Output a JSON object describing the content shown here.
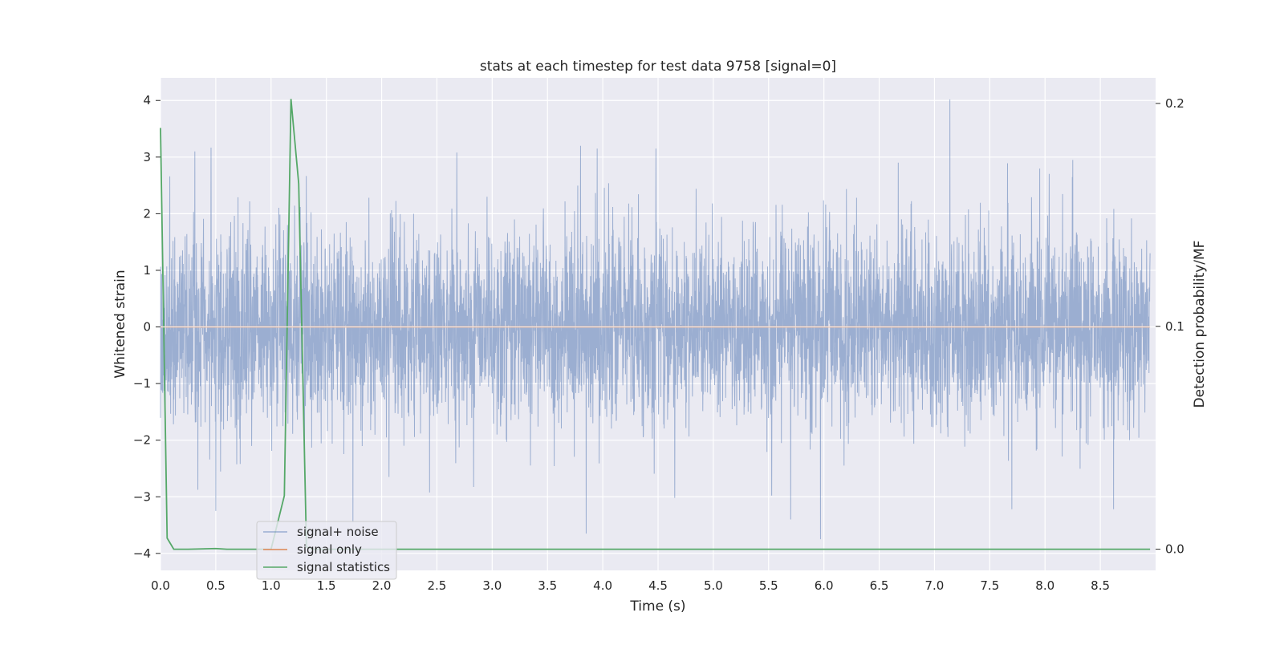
{
  "chart_data": {
    "type": "line",
    "title": "stats at each timestep for test data 9758 [signal=0]",
    "xlabel": "Time (s)",
    "ylabel": "Whitened strain",
    "ylabel_right": "Detection probability/MF",
    "xlim": [
      0.0,
      9.0
    ],
    "ylim": [
      -4.3,
      4.4
    ],
    "ylim_right": [
      -0.0095,
      0.2115
    ],
    "xticks": [
      "0.0",
      "0.5",
      "1.0",
      "1.5",
      "2.0",
      "2.5",
      "3.0",
      "3.5",
      "4.0",
      "4.5",
      "5.0",
      "5.5",
      "6.0",
      "6.5",
      "7.0",
      "7.5",
      "8.0",
      "8.5"
    ],
    "yticks": [
      "4",
      "3",
      "2",
      "1",
      "0",
      "−1",
      "−2",
      "−3",
      "−4"
    ],
    "yticks_right": [
      "0.2",
      "0.1",
      "0.0"
    ],
    "grid": true,
    "legend_position": "lower-left",
    "series": [
      {
        "name": "signal+ noise",
        "axis": "left",
        "color": "#4c72b0",
        "opacity": 0.5,
        "kind": "noise",
        "sample_rate_hz": 2048,
        "std": 0.85,
        "envelope": [
          -3.75,
          4.0
        ],
        "peaks": [
          {
            "x": 7.14,
            "y": 4.02
          },
          {
            "x": 0.31,
            "y": 3.1
          },
          {
            "x": 2.68,
            "y": 3.08
          },
          {
            "x": 3.8,
            "y": 3.2
          },
          {
            "x": 3.95,
            "y": 3.15
          },
          {
            "x": 4.48,
            "y": 3.15
          },
          {
            "x": 8.25,
            "y": 2.95
          },
          {
            "x": 0.5,
            "y": -3.25
          },
          {
            "x": 1.74,
            "y": -3.45
          },
          {
            "x": 3.85,
            "y": -3.65
          },
          {
            "x": 4.65,
            "y": -3.02
          },
          {
            "x": 5.7,
            "y": -3.4
          },
          {
            "x": 5.97,
            "y": -3.75
          },
          {
            "x": 7.7,
            "y": -3.22
          },
          {
            "x": 8.62,
            "y": -3.22
          }
        ]
      },
      {
        "name": "signal only",
        "axis": "left",
        "color": "#dd8452",
        "x": [
          0.0,
          8.95
        ],
        "y": [
          0.0,
          0.0
        ]
      },
      {
        "name": "signal statistics",
        "axis": "right",
        "color": "#55a868",
        "x": [
          0.0,
          0.06,
          0.12,
          0.25,
          0.5,
          0.6,
          1.0,
          1.12,
          1.18,
          1.25,
          1.32,
          1.38,
          2.0,
          2.5,
          8.95
        ],
        "y": [
          0.189,
          0.005,
          0.0,
          0.0,
          0.0003,
          0.0,
          0.0,
          0.024,
          0.202,
          0.164,
          0.001,
          0.0,
          0.0,
          0.0,
          0.0
        ]
      }
    ]
  }
}
